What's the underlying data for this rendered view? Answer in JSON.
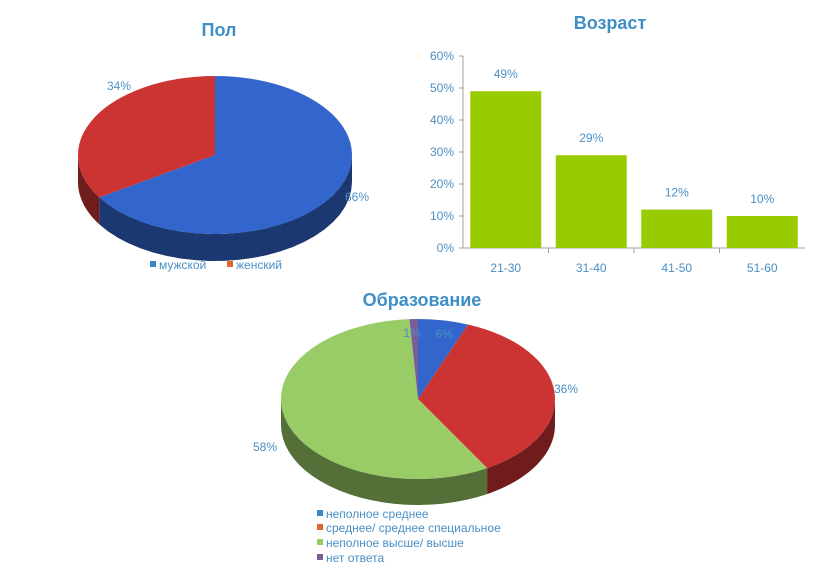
{
  "chart_data": [
    {
      "type": "pie",
      "title": "Пол",
      "categories": [
        "мужской",
        "женский"
      ],
      "values": [
        66,
        34
      ],
      "data_labels": [
        "66%",
        "34%"
      ],
      "colors": [
        "#3366cc",
        "#cc3333"
      ],
      "legend": "bottom"
    },
    {
      "type": "bar",
      "title": "Возраст",
      "categories": [
        "21-30",
        "31-40",
        "41-50",
        "51-60"
      ],
      "values": [
        49,
        29,
        12,
        10
      ],
      "data_labels": [
        "49%",
        "29%",
        "12%",
        "10%"
      ],
      "ylim": [
        0,
        60
      ],
      "yticks": [
        "0%",
        "10%",
        "20%",
        "30%",
        "40%",
        "50%",
        "60%"
      ],
      "color": "#99cc00",
      "grid": false
    },
    {
      "type": "pie",
      "title": "Образование",
      "categories": [
        "неполное среднее",
        "среднее/ среднее специальное",
        "неполное высше/ высше",
        "нет ответа"
      ],
      "values": [
        6,
        36,
        58,
        1
      ],
      "data_labels": [
        "6%",
        "36%",
        "58%",
        "1%"
      ],
      "colors": [
        "#3366cc",
        "#cc3333",
        "#99cc66",
        "#7a5c99"
      ],
      "legend_colors": [
        "#3d85c6",
        "#e0662e",
        "#99cc66",
        "#7a5c99"
      ],
      "legend": "bottom"
    }
  ]
}
